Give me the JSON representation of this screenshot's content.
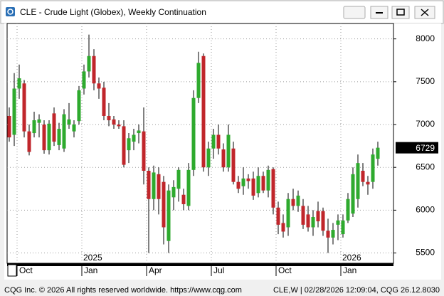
{
  "window": {
    "title": "CLE - Crude Light (Globex), Weekly Continuation",
    "footer_left": "CQG Inc. © 2026 All rights reserved worldwide. https://www.cqg.com",
    "footer_right": "CLE,W | 02/28/2026 12:09:04, CQG 26.12.8030"
  },
  "chart_data": {
    "type": "candlestick",
    "categories": [
      null,
      null,
      "Oct",
      null,
      null,
      null,
      null,
      null,
      null,
      null,
      null,
      null,
      null,
      null,
      null,
      "Jan",
      null,
      null,
      null,
      null,
      null,
      null,
      null,
      null,
      null,
      null,
      null,
      null,
      "Apr",
      null,
      null,
      null,
      null,
      null,
      null,
      null,
      null,
      null,
      null,
      null,
      null,
      "Jul",
      null,
      null,
      null,
      null,
      null,
      null,
      null,
      null,
      null,
      null,
      null,
      null,
      "Oct",
      null,
      null,
      null,
      null,
      null,
      null,
      null,
      null,
      null,
      null,
      null,
      null,
      "Jan",
      null,
      null,
      null,
      null,
      null,
      null,
      null
    ],
    "year_labels": [
      {
        "value": 15,
        "label": "2025"
      },
      {
        "value": 67,
        "label": "2026"
      }
    ],
    "open": [
      7100,
      6880,
      7420,
      7480,
      6920,
      6900,
      7020,
      7000,
      6700,
      7130,
      6760,
      6720,
      7000,
      6920,
      7040,
      7420,
      7620,
      7800,
      7480,
      7430,
      7100,
      7060,
      7000,
      6980,
      6700,
      6800,
      6900,
      6920,
      6460,
      6130,
      6420,
      6330,
      5640,
      6150,
      6250,
      6180,
      6050,
      6470,
      7310,
      7800,
      6500,
      6720,
      6880,
      6710,
      6500,
      6720,
      6330,
      6280,
      6370,
      6370,
      6200,
      6400,
      6230,
      6480,
      6030,
      5850,
      5800,
      6130,
      6050,
      6050,
      5950,
      5800,
      5990,
      5990,
      5760,
      5680,
      5830,
      5720,
      5880,
      5960,
      6130,
      6460,
      6330,
      6330,
      6600
    ],
    "high": [
      7200,
      7600,
      7700,
      7520,
      7000,
      7150,
      7120,
      7050,
      7050,
      7200,
      7020,
      7180,
      7250,
      7050,
      7450,
      7700,
      8050,
      7880,
      7550,
      7500,
      7250,
      7100,
      7050,
      7050,
      6900,
      6950,
      7000,
      7200,
      6500,
      6520,
      6500,
      6400,
      6300,
      6350,
      6500,
      6250,
      6550,
      7400,
      7850,
      7830,
      6800,
      6950,
      7000,
      6780,
      7000,
      6800,
      6400,
      6500,
      6420,
      6450,
      6500,
      6450,
      6520,
      6500,
      6100,
      5950,
      6200,
      6250,
      6230,
      6130,
      6050,
      6000,
      6100,
      6030,
      5900,
      5850,
      5950,
      5950,
      6200,
      6500,
      6650,
      6550,
      6400,
      6720,
      6800
    ],
    "low": [
      6800,
      6750,
      7300,
      6850,
      6640,
      6850,
      6850,
      6660,
      6650,
      6750,
      6700,
      6680,
      6950,
      6850,
      7000,
      7350,
      7550,
      7400,
      7300,
      7050,
      6980,
      6950,
      6950,
      6500,
      6550,
      6700,
      6780,
      6300,
      5500,
      6000,
      5950,
      5600,
      5500,
      6000,
      6100,
      6000,
      6000,
      6400,
      7250,
      6450,
      6400,
      6600,
      6650,
      6450,
      6450,
      6300,
      6200,
      6180,
      6250,
      6120,
      6150,
      6200,
      6150,
      5950,
      5720,
      5680,
      5700,
      6000,
      5980,
      5780,
      5750,
      5700,
      5800,
      5700,
      5500,
      5600,
      5650,
      5680,
      5850,
      5920,
      6030,
      6280,
      6180,
      6250,
      6520
    ],
    "close": [
      6850,
      7420,
      7540,
      6920,
      6680,
      7050,
      7060,
      6700,
      7010,
      6800,
      6950,
      7120,
      7060,
      7000,
      7400,
      7620,
      7800,
      7480,
      7420,
      7100,
      7050,
      7000,
      6980,
      6530,
      6840,
      6880,
      6930,
      6460,
      6130,
      6440,
      6130,
      5800,
      6230,
      6270,
      6470,
      6070,
      6470,
      7310,
      7720,
      6500,
      6720,
      6880,
      6720,
      6500,
      6880,
      6330,
      6250,
      6370,
      6340,
      6170,
      6400,
      6230,
      6470,
      6030,
      5830,
      5750,
      6130,
      6050,
      6170,
      5830,
      5800,
      5920,
      5870,
      5760,
      5680,
      5770,
      5880,
      5880,
      6130,
      6420,
      6550,
      6330,
      6300,
      6650,
      6729
    ],
    "up_color": "#2eaa2e",
    "down_color": "#c0262b",
    "ylim": [
      5380,
      8180
    ],
    "yticks": [
      5500,
      6000,
      6500,
      7000,
      7500,
      8000
    ],
    "grid": true
  }
}
